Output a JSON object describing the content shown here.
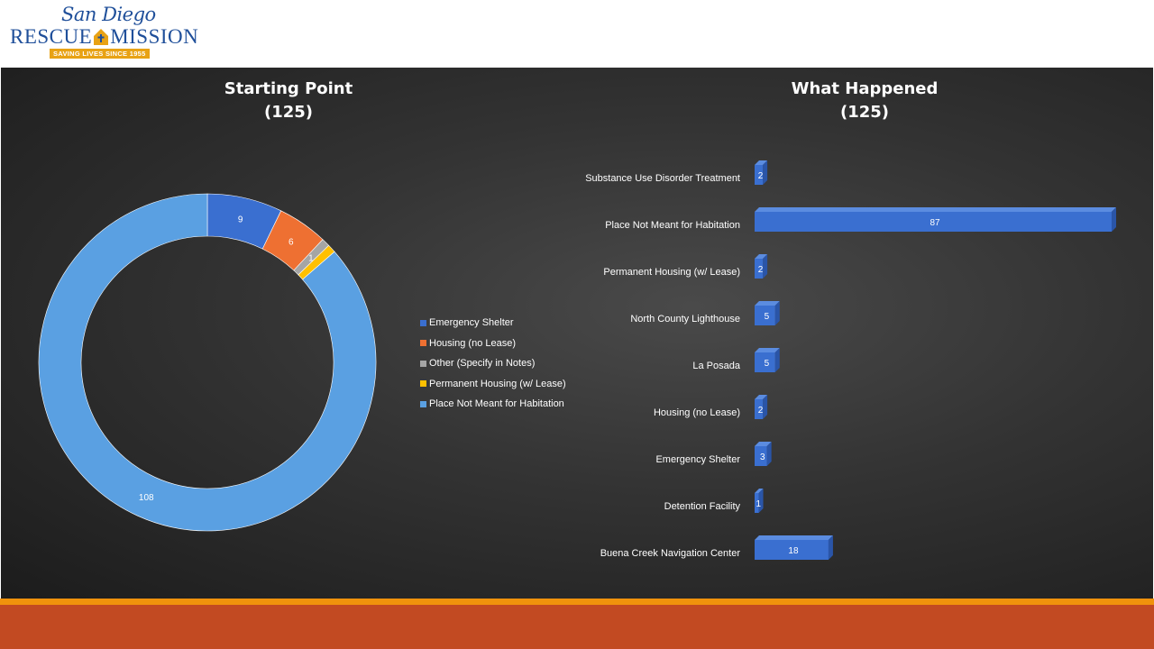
{
  "header": {
    "logo_top": "San Diego",
    "logo_left": "RESCUE",
    "logo_right": "MISSION",
    "logo_tagline": "SAVING LIVES SINCE 1955"
  },
  "colors": {
    "brand_blue": "#1f4f9a",
    "gold": "#e8a214",
    "footer_orange": "#f0920c",
    "footer_red": "#c24a22"
  },
  "chart_data": [
    {
      "type": "pie",
      "variant": "donut",
      "title": "Starting Point",
      "subtitle": "(125)",
      "categories": [
        "Emergency Shelter",
        "Housing (no Lease)",
        "Other (Specify in Notes)",
        "Permanent Housing (w/ Lease)",
        "Place Not Meant for Habitation"
      ],
      "values": [
        9,
        6,
        1,
        1,
        108
      ],
      "data_labels": [
        "9",
        "6",
        "1",
        "",
        "108"
      ],
      "colors": [
        "#3a6fd0",
        "#ee7032",
        "#a5a5a5",
        "#ffc000",
        "#5aa0e2"
      ],
      "legend": "right"
    },
    {
      "type": "bar",
      "orientation": "horizontal",
      "title": "What Happened",
      "subtitle": "(125)",
      "categories": [
        "Substance Use Disorder Treatment",
        "Place Not Meant for Habitation",
        "Permanent Housing (w/ Lease)",
        "North County Lighthouse",
        "La Posada",
        "Housing (no Lease)",
        "Emergency Shelter",
        "Detention Facility",
        "Buena Creek Navigation Center"
      ],
      "values": [
        2,
        87,
        2,
        5,
        5,
        2,
        3,
        1,
        18
      ],
      "color": "#3a6fd0",
      "grid": false
    }
  ]
}
